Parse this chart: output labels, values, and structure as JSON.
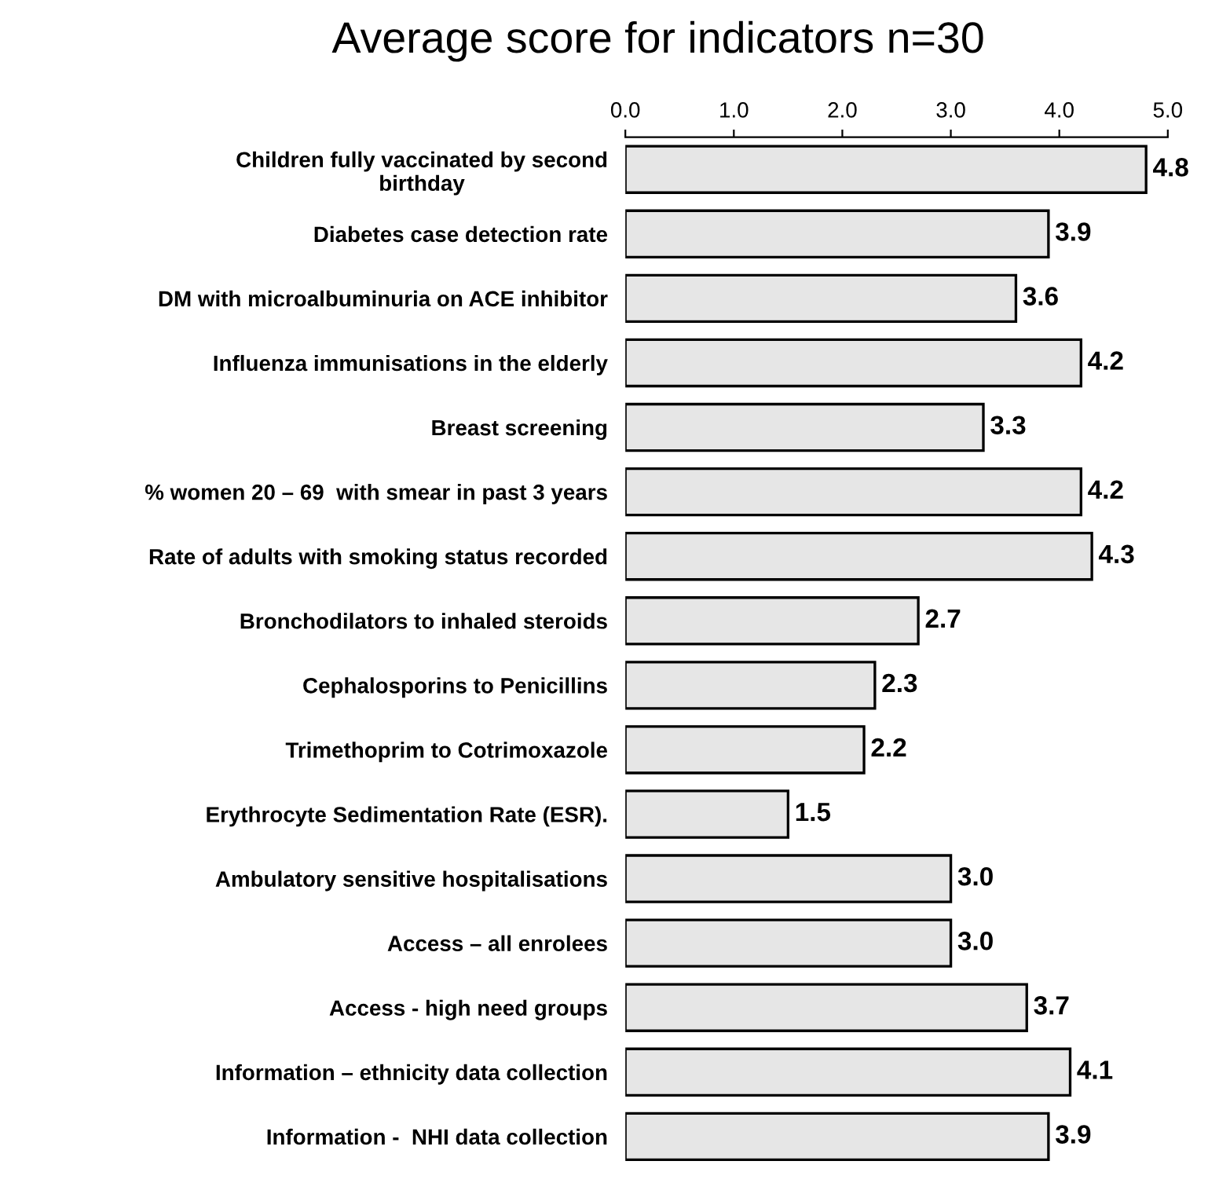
{
  "chart_data": {
    "type": "bar",
    "orientation": "horizontal",
    "title": "Average score for indicators n=30",
    "categories": [
      "Children fully vaccinated by second\nbirthday",
      "Diabetes case detection rate",
      "DM with microalbuminuria on ACE inhibitor",
      "Influenza immunisations in the elderly",
      "Breast screening",
      "% women 20 – 69  with smear in past 3 years",
      "Rate of adults with smoking status recorded",
      "Bronchodilators to inhaled steroids",
      "Cephalosporins to Penicillins",
      "Trimethoprim to Cotrimoxazole",
      "Erythrocyte Sedimentation Rate (ESR).",
      "Ambulatory sensitive hospitalisations",
      "Access – all enrolees",
      "Access - high need groups",
      "Information – ethnicity data collection",
      "Information -  NHI data collection"
    ],
    "values": [
      4.8,
      3.9,
      3.6,
      4.2,
      3.3,
      4.2,
      4.3,
      2.7,
      2.3,
      2.2,
      1.5,
      3.0,
      3.0,
      3.7,
      4.1,
      3.9
    ],
    "value_labels": [
      "4.8",
      "3.9",
      "3.6",
      "4.2",
      "3.3",
      "4.2",
      "4.3",
      "2.7",
      "2.3",
      "2.2",
      "1.5",
      "3.0",
      "3.0",
      "3.7",
      "4.1",
      "3.9"
    ],
    "color": "#e6e6e6",
    "xlim": [
      0,
      5
    ],
    "xticks": [
      {
        "value": 0,
        "label": "0.0"
      },
      {
        "value": 1,
        "label": "1.0"
      },
      {
        "value": 2,
        "label": "2.0"
      },
      {
        "value": 3,
        "label": "3.0"
      },
      {
        "value": 4,
        "label": "4.0"
      },
      {
        "value": 5,
        "label": "5.0"
      }
    ],
    "grid": false,
    "legend": false
  }
}
